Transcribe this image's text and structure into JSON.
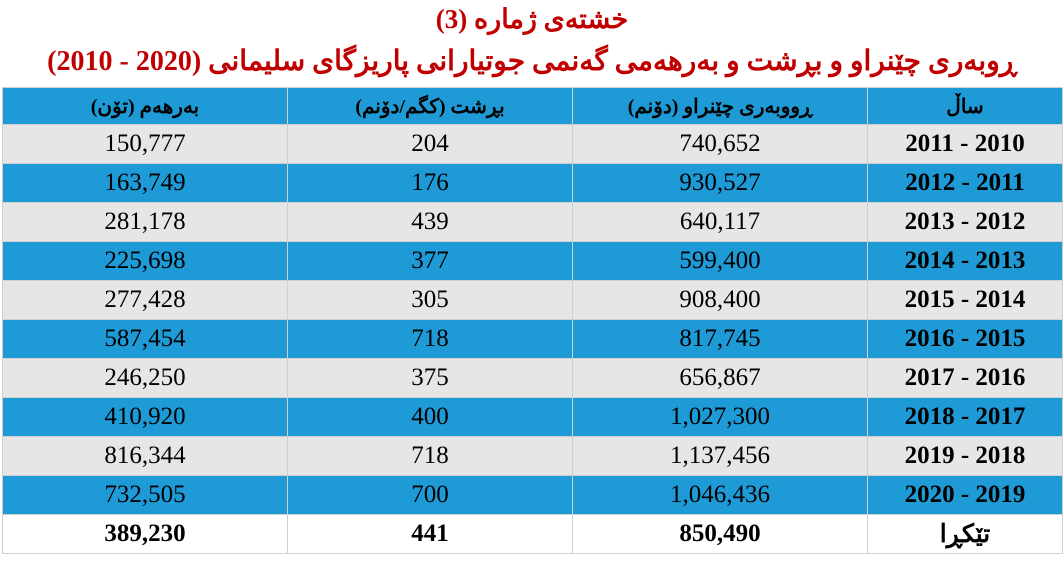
{
  "header": {
    "title": "خشتەی ژمارە (3)",
    "subtitle": "ڕوبەری چێنراو و بڕشت و بەرهەمی گەنمی جوتیارانی پاریزگای سلیمانی (2020 - 2010)"
  },
  "table": {
    "columns": [
      "ساڵ",
      "ڕووبەری چێنراو (دۆنم)",
      "بڕشت (کگم/دۆنم)",
      "بەرهەم (تۆن)"
    ],
    "rows": [
      [
        "2011 - 2010",
        "740,652",
        "204",
        "150,777"
      ],
      [
        "2012 - 2011",
        "930,527",
        "176",
        "163,749"
      ],
      [
        "2013 - 2012",
        "640,117",
        "439",
        "281,178"
      ],
      [
        "2014 - 2013",
        "599,400",
        "377",
        "225,698"
      ],
      [
        "2015 - 2014",
        "908,400",
        "305",
        "277,428"
      ],
      [
        "2016 - 2015",
        "817,745",
        "718",
        "587,454"
      ],
      [
        "2017 - 2016",
        "656,867",
        "375",
        "246,250"
      ],
      [
        "2018 - 2017",
        "1,027,300",
        "400",
        "410,920"
      ],
      [
        "2019 - 2018",
        "1,137,456",
        "718",
        "816,344"
      ],
      [
        "2020 - 2019",
        "1,046,436",
        "700",
        "732,505"
      ]
    ],
    "total": [
      "تێکڕا",
      "850,490",
      "441",
      "389,230"
    ]
  }
}
